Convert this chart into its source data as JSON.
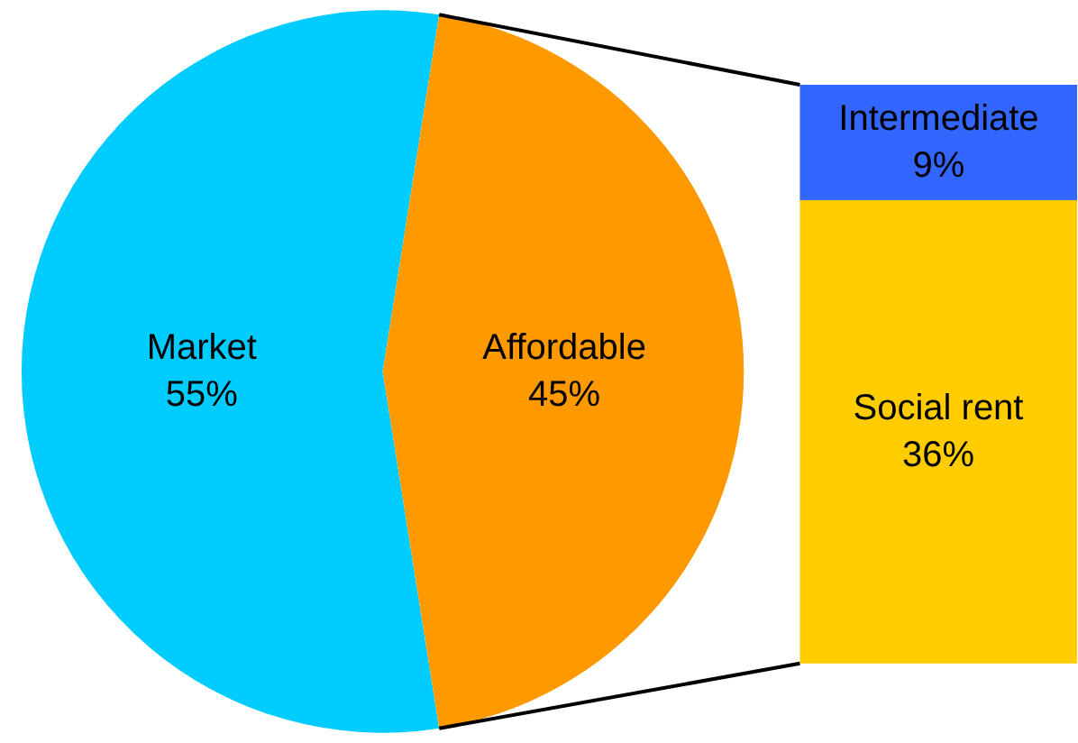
{
  "chart_data": [
    {
      "type": "pie",
      "categories": [
        "Market",
        "Affordable"
      ],
      "values": [
        55,
        45
      ],
      "colors": [
        "#00ccff",
        "#ff9900"
      ],
      "value_labels": [
        "55%",
        "45%"
      ]
    },
    {
      "type": "bar",
      "stacked": true,
      "categories": [
        null
      ],
      "ylim": [
        0,
        45
      ],
      "tick_labels": false,
      "series": [
        {
          "name": "Social rent",
          "color": "#ffcc00",
          "values": [
            36
          ],
          "value_labels": [
            "36%"
          ]
        },
        {
          "name": "Intermediate",
          "color": "#3366ff",
          "values": [
            9
          ],
          "value_labels": [
            "9%"
          ]
        }
      ]
    }
  ]
}
